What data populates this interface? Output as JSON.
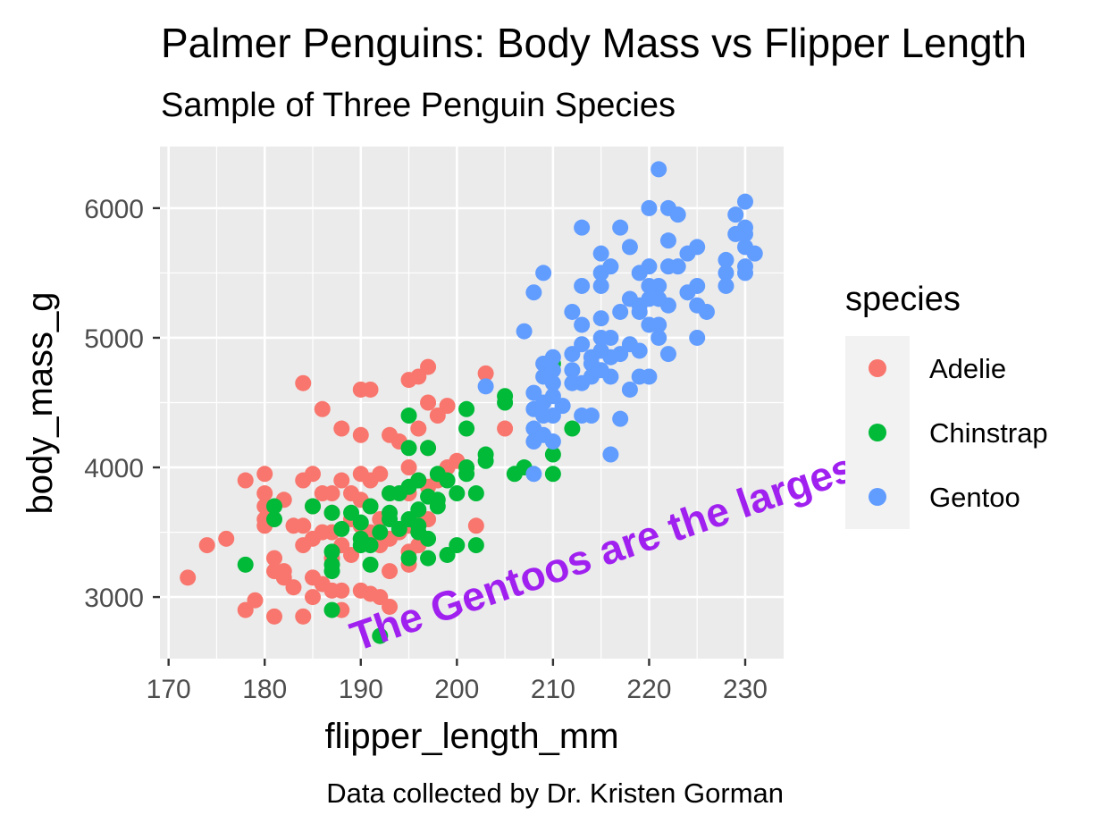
{
  "chart_data": {
    "type": "scatter",
    "title": "Palmer Penguins: Body Mass vs Flipper Length",
    "subtitle": "Sample of Three Penguin Species",
    "xlabel": "flipper_length_mm",
    "ylabel": "body_mass_g",
    "caption": "Data collected by Dr. Kristen Gorman",
    "annotation": "The Gentoos are the largest",
    "annotation_color": "#A020F0",
    "xlim": [
      169.1,
      234.0
    ],
    "ylim": [
      2525,
      6475
    ],
    "x_ticks": [
      170,
      180,
      190,
      200,
      210,
      220,
      230
    ],
    "y_ticks": [
      3000,
      4000,
      5000,
      6000
    ],
    "grid": true,
    "panel_background": "#EBEBEB",
    "legend": {
      "title": "species",
      "placement": "right"
    },
    "series": [
      {
        "name": "Adelie",
        "color": "#F8766D",
        "points": [
          [
            172,
            3150
          ],
          [
            174,
            3400
          ],
          [
            176,
            3450
          ],
          [
            178,
            3900
          ],
          [
            178,
            2900
          ],
          [
            179,
            2975
          ],
          [
            180,
            3950
          ],
          [
            180,
            3800
          ],
          [
            180,
            3700
          ],
          [
            180,
            3550
          ],
          [
            180,
            3600
          ],
          [
            181,
            3200
          ],
          [
            181,
            2850
          ],
          [
            181,
            3300
          ],
          [
            182,
            3750
          ],
          [
            182,
            3200
          ],
          [
            182,
            3150
          ],
          [
            183,
            3550
          ],
          [
            183,
            3075
          ],
          [
            184,
            3900
          ],
          [
            184,
            4650
          ],
          [
            184,
            3550
          ],
          [
            184,
            3400
          ],
          [
            184,
            2850
          ],
          [
            185,
            3950
          ],
          [
            185,
            3700
          ],
          [
            185,
            3450
          ],
          [
            185,
            3150
          ],
          [
            185,
            3000
          ],
          [
            186,
            4450
          ],
          [
            186,
            3800
          ],
          [
            186,
            3500
          ],
          [
            186,
            3100
          ],
          [
            187,
            3800
          ],
          [
            187,
            3650
          ],
          [
            187,
            3500
          ],
          [
            187,
            3300
          ],
          [
            187,
            3050
          ],
          [
            188,
            4300
          ],
          [
            188,
            3900
          ],
          [
            188,
            3400
          ],
          [
            188,
            3050
          ],
          [
            188,
            2900
          ],
          [
            189,
            3800
          ],
          [
            189,
            3600
          ],
          [
            189,
            3325
          ],
          [
            190,
            4600
          ],
          [
            190,
            4250
          ],
          [
            190,
            3950
          ],
          [
            190,
            3750
          ],
          [
            190,
            3550
          ],
          [
            190,
            3450
          ],
          [
            190,
            3050
          ],
          [
            191,
            4600
          ],
          [
            191,
            3900
          ],
          [
            191,
            3700
          ],
          [
            191,
            3500
          ],
          [
            191,
            3025
          ],
          [
            192,
            3950
          ],
          [
            192,
            3600
          ],
          [
            192,
            3400
          ],
          [
            192,
            3000
          ],
          [
            193,
            4250
          ],
          [
            193,
            3800
          ],
          [
            193,
            3450
          ],
          [
            193,
            3200
          ],
          [
            193,
            2925
          ],
          [
            194,
            4200
          ],
          [
            194,
            3500
          ],
          [
            195,
            4675
          ],
          [
            195,
            4000
          ],
          [
            195,
            3800
          ],
          [
            195,
            3550
          ],
          [
            195,
            3350
          ],
          [
            195,
            3250
          ],
          [
            196,
            4700
          ],
          [
            196,
            4300
          ],
          [
            196,
            3900
          ],
          [
            196,
            3600
          ],
          [
            196,
            3400
          ],
          [
            197,
            4775
          ],
          [
            197,
            4500
          ],
          [
            197,
            4150
          ],
          [
            197,
            3850
          ],
          [
            197,
            3600
          ],
          [
            198,
            4400
          ],
          [
            198,
            3900
          ],
          [
            199,
            4475
          ],
          [
            199,
            4000
          ],
          [
            200,
            4050
          ],
          [
            201,
            4000
          ],
          [
            202,
            3550
          ],
          [
            203,
            4725
          ],
          [
            205,
            4300
          ]
        ]
      },
      {
        "name": "Chinstrap",
        "color": "#00BA38",
        "points": [
          [
            178,
            3250
          ],
          [
            181,
            3700
          ],
          [
            181,
            3600
          ],
          [
            185,
            3700
          ],
          [
            187,
            3650
          ],
          [
            187,
            3350
          ],
          [
            187,
            3250
          ],
          [
            187,
            3200
          ],
          [
            187,
            2900
          ],
          [
            188,
            3525
          ],
          [
            189,
            3650
          ],
          [
            190,
            3450
          ],
          [
            190,
            3400
          ],
          [
            190,
            3575
          ],
          [
            191,
            3700
          ],
          [
            191,
            3400
          ],
          [
            191,
            3250
          ],
          [
            192,
            3500
          ],
          [
            192,
            2700
          ],
          [
            193,
            3800
          ],
          [
            193,
            3650
          ],
          [
            193,
            3600
          ],
          [
            194,
            3800
          ],
          [
            194,
            3525
          ],
          [
            195,
            4400
          ],
          [
            195,
            4150
          ],
          [
            195,
            3850
          ],
          [
            195,
            3600
          ],
          [
            195,
            3300
          ],
          [
            196,
            3900
          ],
          [
            196,
            3675
          ],
          [
            196,
            3550
          ],
          [
            196,
            3500
          ],
          [
            197,
            4150
          ],
          [
            197,
            3775
          ],
          [
            197,
            3450
          ],
          [
            197,
            3300
          ],
          [
            198,
            3950
          ],
          [
            198,
            3750
          ],
          [
            198,
            3700
          ],
          [
            199,
            3900
          ],
          [
            199,
            3325
          ],
          [
            200,
            3800
          ],
          [
            200,
            3400
          ],
          [
            201,
            4450
          ],
          [
            201,
            4300
          ],
          [
            201,
            4000
          ],
          [
            201,
            3950
          ],
          [
            202,
            3800
          ],
          [
            202,
            3400
          ],
          [
            203,
            4100
          ],
          [
            203,
            4050
          ],
          [
            205,
            4550
          ],
          [
            205,
            4500
          ],
          [
            206,
            3950
          ],
          [
            207,
            4000
          ],
          [
            210,
            4800
          ],
          [
            210,
            4100
          ],
          [
            210,
            3950
          ],
          [
            212,
            4300
          ]
        ]
      },
      {
        "name": "Gentoo",
        "color": "#619CFF",
        "points": [
          [
            203,
            4625
          ],
          [
            207,
            5050
          ],
          [
            208,
            5350
          ],
          [
            208,
            4575
          ],
          [
            208,
            4450
          ],
          [
            208,
            4300
          ],
          [
            208,
            4200
          ],
          [
            208,
            3950
          ],
          [
            209,
            5500
          ],
          [
            209,
            4800
          ],
          [
            209,
            4700
          ],
          [
            209,
            4500
          ],
          [
            209,
            4400
          ],
          [
            209,
            4250
          ],
          [
            210,
            4850
          ],
          [
            210,
            4750
          ],
          [
            210,
            4650
          ],
          [
            210,
            4550
          ],
          [
            210,
            4400
          ],
          [
            210,
            4200
          ],
          [
            211,
            4475
          ],
          [
            212,
            4875
          ],
          [
            212,
            4750
          ],
          [
            212,
            4650
          ],
          [
            212,
            5200
          ],
          [
            213,
            5850
          ],
          [
            213,
            5400
          ],
          [
            213,
            5100
          ],
          [
            213,
            4950
          ],
          [
            213,
            4650
          ],
          [
            213,
            4400
          ],
          [
            214,
            4850
          ],
          [
            214,
            4800
          ],
          [
            214,
            4700
          ],
          [
            214,
            4400
          ],
          [
            215,
            5650
          ],
          [
            215,
            5500
          ],
          [
            215,
            5400
          ],
          [
            215,
            5150
          ],
          [
            215,
            5000
          ],
          [
            215,
            4900
          ],
          [
            215,
            4750
          ],
          [
            216,
            5550
          ],
          [
            216,
            5000
          ],
          [
            216,
            4850
          ],
          [
            216,
            4700
          ],
          [
            216,
            4100
          ],
          [
            217,
            5850
          ],
          [
            217,
            5200
          ],
          [
            217,
            4875
          ],
          [
            217,
            4375
          ],
          [
            218,
            5700
          ],
          [
            218,
            5300
          ],
          [
            218,
            4950
          ],
          [
            218,
            4600
          ],
          [
            219,
            5500
          ],
          [
            219,
            5250
          ],
          [
            219,
            5200
          ],
          [
            219,
            4900
          ],
          [
            219,
            4700
          ],
          [
            220,
            6000
          ],
          [
            220,
            5550
          ],
          [
            220,
            5400
          ],
          [
            220,
            5300
          ],
          [
            220,
            5100
          ],
          [
            220,
            4700
          ],
          [
            221,
            6300
          ],
          [
            221,
            5400
          ],
          [
            221,
            5300
          ],
          [
            221,
            5100
          ],
          [
            221,
            5000
          ],
          [
            222,
            6000
          ],
          [
            222,
            5750
          ],
          [
            222,
            5550
          ],
          [
            222,
            5250
          ],
          [
            222,
            4875
          ],
          [
            223,
            5950
          ],
          [
            223,
            5550
          ],
          [
            224,
            5650
          ],
          [
            224,
            5350
          ],
          [
            225,
            5700
          ],
          [
            225,
            5400
          ],
          [
            225,
            5250
          ],
          [
            225,
            5000
          ],
          [
            226,
            5200
          ],
          [
            228,
            5600
          ],
          [
            228,
            5500
          ],
          [
            228,
            5400
          ],
          [
            229,
            5950
          ],
          [
            229,
            5800
          ],
          [
            230,
            6050
          ],
          [
            230,
            5850
          ],
          [
            230,
            5800
          ],
          [
            230,
            5700
          ],
          [
            230,
            5550
          ],
          [
            230,
            5500
          ],
          [
            231,
            5650
          ]
        ]
      }
    ]
  }
}
